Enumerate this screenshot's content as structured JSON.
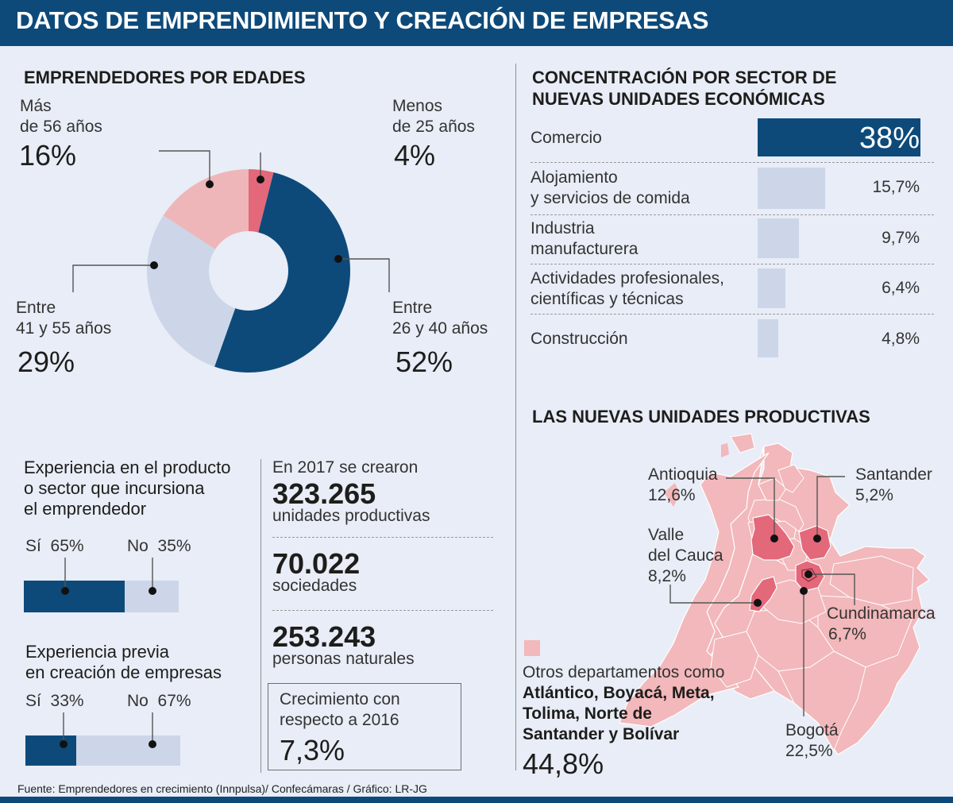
{
  "header": {
    "title": "DATOS DE EMPRENDIMIENTO Y CREACIÓN DE EMPRESAS"
  },
  "colors": {
    "navy": "#0d4a7a",
    "red": "#e3687a",
    "pink": "#efb6b9",
    "light": "#ccd6e8",
    "map_other": "#f2b8bb",
    "map_highlight": "#e3687a"
  },
  "chart_data": [
    {
      "type": "pie",
      "title": "EMPRENDEDORES POR EDADES",
      "slices": [
        {
          "label_line1": "Menos",
          "label_line2": "de 25 años",
          "value": 4,
          "value_text": "4%",
          "color": "#e3687a"
        },
        {
          "label_line1": "Entre",
          "label_line2": "26 y 40 años",
          "value": 52,
          "value_text": "52%",
          "color": "#0d4a7a"
        },
        {
          "label_line1": "Entre",
          "label_line2": "41 y 55 años",
          "value": 29,
          "value_text": "29%",
          "color": "#ccd6e8"
        },
        {
          "label_line1": "Más",
          "label_line2": "de 56 años",
          "value": 16,
          "value_text": "16%",
          "color": "#efb6b9"
        }
      ]
    },
    {
      "type": "bar",
      "title_line1": "CONCENTRACIÓN POR SECTOR DE",
      "title_line2": "NUEVAS UNIDADES ECONÓMICAS",
      "bars": [
        {
          "label_line1": "Comercio",
          "label_line2": "",
          "value": 38,
          "value_text": "38%"
        },
        {
          "label_line1": "Alojamiento",
          "label_line2": "y servicios de comida",
          "value": 15.7,
          "value_text": "15,7%"
        },
        {
          "label_line1": "Industria",
          "label_line2": "manufacturera",
          "value": 9.7,
          "value_text": "9,7%"
        },
        {
          "label_line1": "Actividades profesionales,",
          "label_line2": "científicas y técnicas",
          "value": 6.4,
          "value_text": "6,4%"
        },
        {
          "label_line1": "Construcción",
          "label_line2": "",
          "value": 4.8,
          "value_text": "4,8%"
        }
      ]
    },
    {
      "type": "bar",
      "title_line1": "Experiencia en el producto",
      "title_line2": "o sector que incursiona",
      "title_line3": "el emprendedor",
      "yes_label": "Sí",
      "yes_value": 65,
      "yes_text": "65%",
      "no_label": "No",
      "no_value": 35,
      "no_text": "35%"
    },
    {
      "type": "bar",
      "title_line1": "Experiencia previa",
      "title_line2": "en creación de empresas",
      "yes_label": "Sí",
      "yes_value": 33,
      "yes_text": "33%",
      "no_label": "No",
      "no_value": 67,
      "no_text": "67%"
    },
    {
      "type": "table",
      "title": "LAS NUEVAS UNIDADES PRODUCTIVAS",
      "regions": [
        {
          "name": "Antioquia",
          "value": 12.6,
          "value_text": "12,6%"
        },
        {
          "name": "Santander",
          "value": 5.2,
          "value_text": "5,2%"
        },
        {
          "name_line1": "Valle",
          "name_line2": "del Cauca",
          "value": 8.2,
          "value_text": "8,2%"
        },
        {
          "name": "Cundinamarca",
          "value": 6.7,
          "value_text": "6,7%"
        },
        {
          "name": "Bogotá",
          "value": 22.5,
          "value_text": "22,5%"
        }
      ],
      "others": {
        "intro": "Otros departamentos como",
        "bold_line1": "Atlántico, Boyacá, Meta,",
        "bold_line2": "Tolima, Norte de",
        "bold_line3": "Santander y Bolívar",
        "value": 44.8,
        "value_text": "44,8%"
      }
    }
  ],
  "stats": {
    "intro": "En 2017 se crearon",
    "units_value": "323.265",
    "units_label": "unidades productivas",
    "soc_value": "70.022",
    "soc_label": "sociedades",
    "persons_value": "253.243",
    "persons_label": "personas naturales",
    "growth_line1": "Crecimiento con",
    "growth_line2": "respecto a 2016",
    "growth_value": "7,3%"
  },
  "footer": {
    "source": "Fuente: Emprendedores en crecimiento (Innpulsa)/ Confecámaras / Gráfico: LR-JG"
  }
}
